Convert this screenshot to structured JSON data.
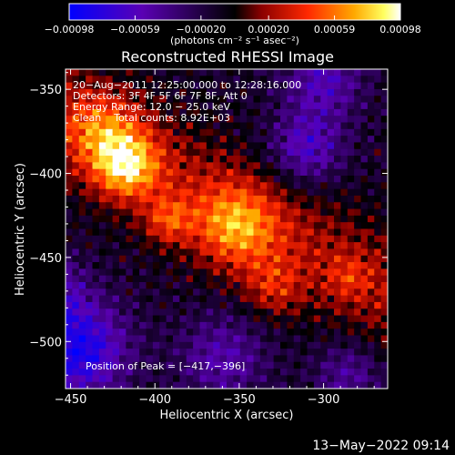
{
  "chart_data": {
    "type": "heatmap",
    "title": "Reconstructed RHESSI Image",
    "xlabel": "Heliocentric X (arcsec)",
    "ylabel": "Heliocentric Y (arcsec)",
    "xlim": [
      -453,
      -262
    ],
    "ylim": [
      -528,
      -338
    ],
    "x_ticks": [
      -450,
      -400,
      -350,
      -300
    ],
    "y_ticks": [
      -350,
      -400,
      -450,
      -500
    ],
    "x_tick_labels": [
      "−450",
      "−400",
      "−350",
      "−300"
    ],
    "y_tick_labels": [
      "−350",
      "−400",
      "−450",
      "−500"
    ],
    "colorbar": {
      "range": [
        -0.00098,
        0.00098
      ],
      "ticks": [
        -0.00098,
        -0.00059,
        -0.0002,
        0.0002,
        0.00059,
        0.00098
      ],
      "tick_labels": [
        "−0.00098",
        "−0.00059",
        "−0.00020",
        "0.00020",
        "0.00059",
        "0.00098"
      ],
      "units_label": "(photons cm⁻² s⁻¹ asec⁻²)",
      "colors": [
        "#0000ff",
        "#5a00b4",
        "#000000",
        "#8a0000",
        "#ff2800",
        "#ffa800",
        "#ffff60",
        "#ffffff"
      ]
    },
    "annotations": [
      "20−Aug−2011 12:25:00.000 to 12:28:16.000",
      "Detectors: 3F 4F 5F 6F 7F 8F, Att 0",
      "Energy Range: 12.0 − 25.0 keV",
      "Clean    Total counts: 8.92E+03"
    ],
    "peak_label": "Position of Peak = [−417,−396]",
    "peak": [
      -417,
      -396
    ],
    "map_components": [
      {
        "kind": "ridge",
        "from": [
          -450,
          -370
        ],
        "to": [
          -262,
          -470
        ],
        "width": 48,
        "amp": 0.00034
      },
      {
        "kind": "blob",
        "center": [
          -417,
          -396
        ],
        "sigma": 13,
        "amp": 0.0007
      },
      {
        "kind": "blob",
        "center": [
          -352,
          -432
        ],
        "sigma": 17,
        "amp": 0.00058
      },
      {
        "kind": "blob",
        "center": [
          -392,
          -428
        ],
        "sigma": 10,
        "amp": 0.00042
      },
      {
        "kind": "blob",
        "center": [
          -330,
          -468
        ],
        "sigma": 12,
        "amp": 0.00034
      },
      {
        "kind": "blob",
        "center": [
          -285,
          -462
        ],
        "sigma": 9,
        "amp": 0.00022
      },
      {
        "kind": "blob",
        "center": [
          -430,
          -375
        ],
        "sigma": 16,
        "amp": 0.00045
      },
      {
        "kind": "blob",
        "center": [
          -445,
          -505
        ],
        "sigma": 20,
        "amp": -0.00075
      },
      {
        "kind": "blob",
        "center": [
          -310,
          -385
        ],
        "sigma": 15,
        "amp": -0.0005
      },
      {
        "kind": "blob",
        "center": [
          -360,
          -510
        ],
        "sigma": 18,
        "amp": -0.0004
      },
      {
        "kind": "blob",
        "center": [
          -285,
          -520
        ],
        "sigma": 14,
        "amp": -0.00035
      },
      {
        "kind": "blob",
        "center": [
          -300,
          -345
        ],
        "sigma": 16,
        "amp": -0.00045
      },
      {
        "kind": "blob",
        "center": [
          -460,
          -470
        ],
        "sigma": 14,
        "amp": -0.0004
      }
    ],
    "base_level": -0.00012
  },
  "timestamp": "13−May−2022 09:14"
}
